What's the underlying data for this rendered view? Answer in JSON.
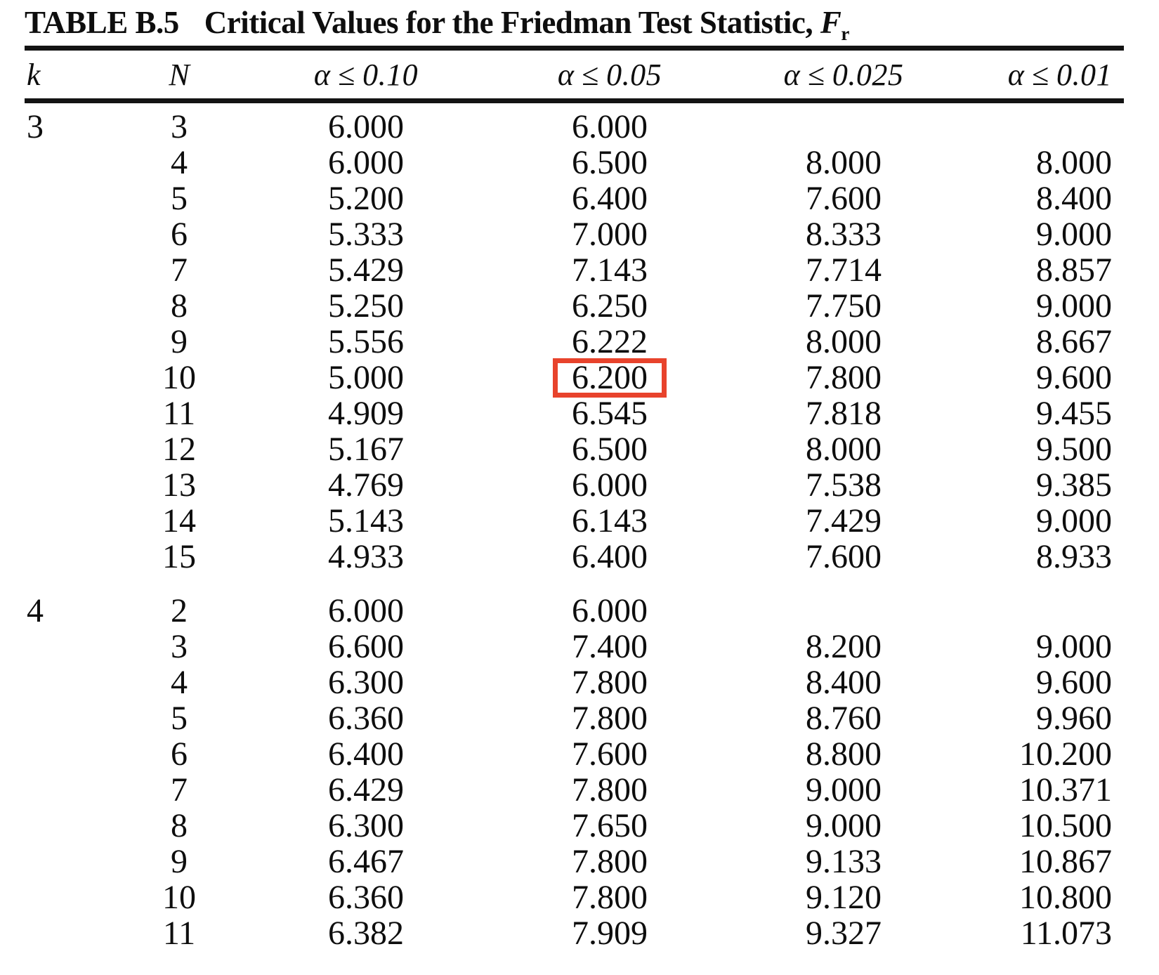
{
  "title": {
    "label": "TABLE B.5",
    "text": "Critical Values for the Friedman Test Statistic,",
    "symbol": "F",
    "symbol_sub": "r"
  },
  "colors": {
    "background": "#ffffff",
    "text": "#0e0e0e",
    "rule": "#131313",
    "highlight_box": "#e8432c"
  },
  "table": {
    "columns": [
      {
        "label": "k"
      },
      {
        "label": "N"
      },
      {
        "symbol": "α",
        "operator": "≤",
        "level": "0.10"
      },
      {
        "symbol": "α",
        "operator": "≤",
        "level": "0.05"
      },
      {
        "symbol": "α",
        "operator": "≤",
        "level": "0.025"
      },
      {
        "symbol": "α",
        "operator": "≤",
        "level": "0.01"
      }
    ],
    "sections": [
      {
        "k": "3",
        "rows": [
          {
            "N": "3",
            "values": [
              "6.000",
              "6.000",
              "",
              ""
            ]
          },
          {
            "N": "4",
            "values": [
              "6.000",
              "6.500",
              "8.000",
              "8.000"
            ]
          },
          {
            "N": "5",
            "values": [
              "5.200",
              "6.400",
              "7.600",
              "8.400"
            ]
          },
          {
            "N": "6",
            "values": [
              "5.333",
              "7.000",
              "8.333",
              "9.000"
            ]
          },
          {
            "N": "7",
            "values": [
              "5.429",
              "7.143",
              "7.714",
              "8.857"
            ]
          },
          {
            "N": "8",
            "values": [
              "5.250",
              "6.250",
              "7.750",
              "9.000"
            ]
          },
          {
            "N": "9",
            "values": [
              "5.556",
              "6.222",
              "8.000",
              "8.667"
            ]
          },
          {
            "N": "10",
            "values": [
              "5.000",
              "6.200",
              "7.800",
              "9.600"
            ],
            "highlight_col": 1
          },
          {
            "N": "11",
            "values": [
              "4.909",
              "6.545",
              "7.818",
              "9.455"
            ]
          },
          {
            "N": "12",
            "values": [
              "5.167",
              "6.500",
              "8.000",
              "9.500"
            ]
          },
          {
            "N": "13",
            "values": [
              "4.769",
              "6.000",
              "7.538",
              "9.385"
            ]
          },
          {
            "N": "14",
            "values": [
              "5.143",
              "6.143",
              "7.429",
              "9.000"
            ]
          },
          {
            "N": "15",
            "values": [
              "4.933",
              "6.400",
              "7.600",
              "8.933"
            ]
          }
        ]
      },
      {
        "k": "4",
        "rows": [
          {
            "N": "2",
            "values": [
              "6.000",
              "6.000",
              "",
              ""
            ]
          },
          {
            "N": "3",
            "values": [
              "6.600",
              "7.400",
              "8.200",
              "9.000"
            ]
          },
          {
            "N": "4",
            "values": [
              "6.300",
              "7.800",
              "8.400",
              "9.600"
            ]
          },
          {
            "N": "5",
            "values": [
              "6.360",
              "7.800",
              "8.760",
              "9.960"
            ]
          },
          {
            "N": "6",
            "values": [
              "6.400",
              "7.600",
              "8.800",
              "10.200"
            ]
          },
          {
            "N": "7",
            "values": [
              "6.429",
              "7.800",
              "9.000",
              "10.371"
            ]
          },
          {
            "N": "8",
            "values": [
              "6.300",
              "7.650",
              "9.000",
              "10.500"
            ]
          },
          {
            "N": "9",
            "values": [
              "6.467",
              "7.800",
              "9.133",
              "10.867"
            ]
          },
          {
            "N": "10",
            "values": [
              "6.360",
              "7.800",
              "9.120",
              "10.800"
            ]
          },
          {
            "N": "11",
            "values": [
              "6.382",
              "7.909",
              "9.327",
              "11.073"
            ]
          }
        ]
      }
    ]
  }
}
